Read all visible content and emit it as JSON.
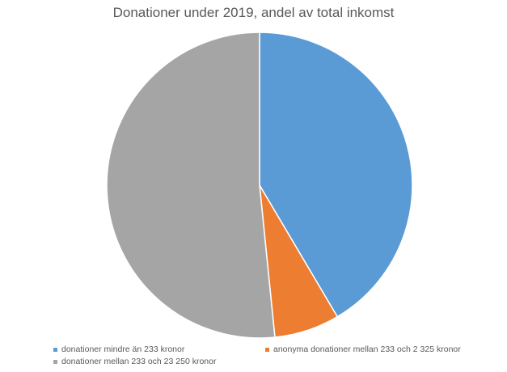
{
  "chart_data": {
    "type": "pie",
    "title": "Donationer under 2019, andel av total inkomst",
    "categories": [
      "donationer mindre än 233 kronor",
      "anonyma donationer mellan 233 och 2 325 kronor",
      "donationer mellan 233 och 23 250 kronor"
    ],
    "values": [
      41.5,
      6.9,
      51.6
    ],
    "colors": [
      "#5b9bd5",
      "#ed7d31",
      "#a5a5a5"
    ],
    "start_angle_deg": 0,
    "direction": "clockwise",
    "legend_position": "bottom"
  }
}
